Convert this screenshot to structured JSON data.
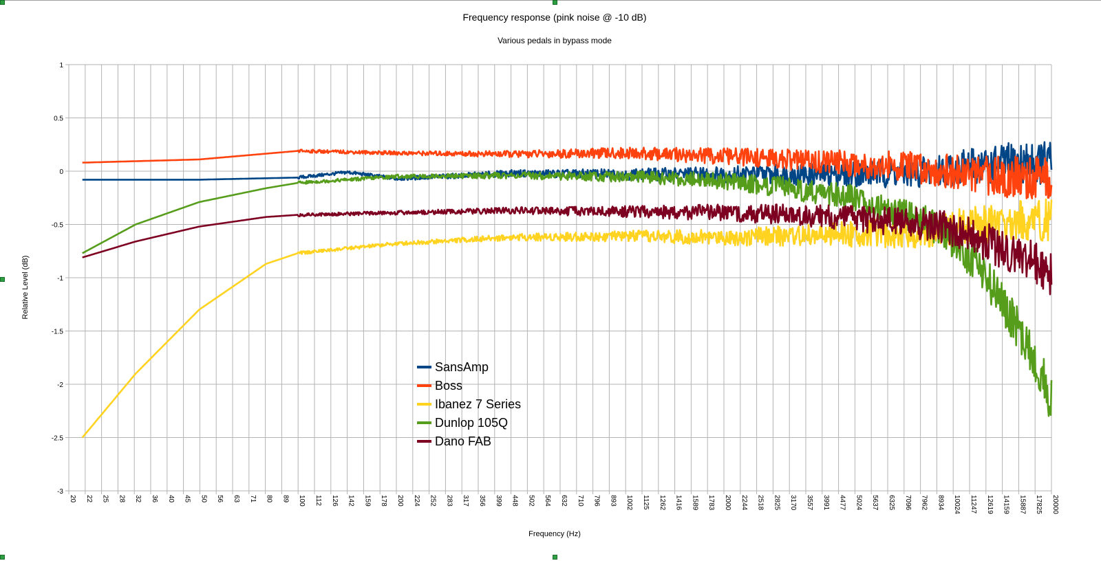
{
  "chart_data": {
    "type": "line",
    "title": "Frequency response (pink noise @ -10 dB)",
    "subtitle": "Various pedals in bypass mode",
    "xlabel": "Frequency (Hz)",
    "ylabel": "Relative Level (dB)",
    "x_scale": "log",
    "x_ticks": [
      "20",
      "22",
      "25",
      "28",
      "32",
      "36",
      "40",
      "45",
      "50",
      "56",
      "63",
      "71",
      "80",
      "89",
      "100",
      "112",
      "126",
      "142",
      "159",
      "178",
      "200",
      "224",
      "252",
      "283",
      "317",
      "356",
      "399",
      "448",
      "502",
      "564",
      "632",
      "710",
      "796",
      "893",
      "1002",
      "1125",
      "1262",
      "1416",
      "1589",
      "1783",
      "2000",
      "2244",
      "2518",
      "2825",
      "3170",
      "3557",
      "3991",
      "4477",
      "5024",
      "5637",
      "6325",
      "7096",
      "7962",
      "8934",
      "10024",
      "11247",
      "12619",
      "14159",
      "15887",
      "17825",
      "20000"
    ],
    "y_ticks": [
      "1",
      "0.5",
      "0",
      "-0.5",
      "-1",
      "-1.5",
      "-2",
      "-2.5",
      "-3"
    ],
    "ylim": [
      -3,
      1
    ],
    "xlim": [
      20,
      20000
    ],
    "grid": true,
    "legend_position": "center-left",
    "series": [
      {
        "name": "SansAmp",
        "color": "#004586",
        "x": [
          22,
          50,
          100,
          142,
          200,
          448,
          1000,
          2000,
          4000,
          8000,
          12000,
          16000,
          20000
        ],
        "values": [
          -0.08,
          -0.08,
          -0.06,
          -0.01,
          -0.07,
          -0.02,
          -0.03,
          -0.03,
          -0.03,
          -0.01,
          0.05,
          0.08,
          0.08
        ]
      },
      {
        "name": "Boss",
        "color": "#ff420e",
        "x": [
          22,
          50,
          100,
          200,
          448,
          1000,
          2000,
          4000,
          8000,
          12000,
          16000,
          20000
        ],
        "values": [
          0.08,
          0.11,
          0.19,
          0.17,
          0.16,
          0.17,
          0.14,
          0.09,
          0.03,
          -0.04,
          -0.06,
          -0.08
        ]
      },
      {
        "name": "Ibanez 7 Series",
        "color": "#ffd320",
        "x": [
          22,
          32,
          50,
          80,
          100,
          200,
          448,
          1000,
          2000,
          4000,
          8000,
          12000,
          16000,
          20000
        ],
        "values": [
          -2.5,
          -1.9,
          -1.3,
          -0.87,
          -0.77,
          -0.68,
          -0.62,
          -0.61,
          -0.62,
          -0.6,
          -0.57,
          -0.5,
          -0.47,
          -0.45
        ]
      },
      {
        "name": "Dunlop 105Q",
        "color": "#579d1c",
        "x": [
          22,
          32,
          50,
          80,
          100,
          200,
          448,
          1000,
          2000,
          3000,
          5000,
          8000,
          10000,
          12000,
          14000,
          16000,
          18000,
          20000
        ],
        "values": [
          -0.77,
          -0.5,
          -0.29,
          -0.16,
          -0.11,
          -0.05,
          -0.04,
          -0.05,
          -0.09,
          -0.15,
          -0.25,
          -0.45,
          -0.65,
          -0.9,
          -1.2,
          -1.5,
          -1.8,
          -2.15
        ]
      },
      {
        "name": "Dano FAB",
        "color": "#7e0021",
        "x": [
          22,
          32,
          50,
          80,
          100,
          200,
          448,
          1000,
          2000,
          4000,
          6000,
          8000,
          10000,
          12000,
          14000,
          16000,
          18000,
          20000
        ],
        "values": [
          -0.81,
          -0.66,
          -0.52,
          -0.43,
          -0.41,
          -0.39,
          -0.37,
          -0.38,
          -0.39,
          -0.42,
          -0.46,
          -0.5,
          -0.55,
          -0.63,
          -0.72,
          -0.8,
          -0.88,
          -0.95
        ]
      }
    ]
  }
}
